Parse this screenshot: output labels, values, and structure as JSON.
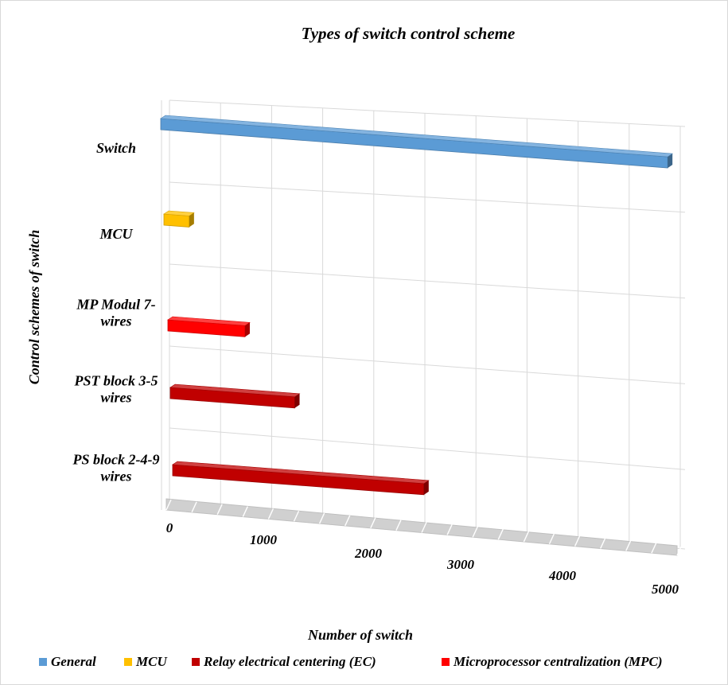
{
  "chart_data": {
    "type": "bar",
    "orientation": "horizontal",
    "style": "3d",
    "title": "Types of switch control scheme",
    "xlabel": "Number of switch",
    "ylabel": "Control schemes  of switch",
    "xlim": [
      0,
      5000
    ],
    "x_ticks": [
      "0",
      "1000",
      "2000",
      "3000",
      "4000",
      "5000"
    ],
    "grid": true,
    "legend_position": "bottom",
    "categories": [
      {
        "label_lines": [
          "Switch"
        ],
        "value": 4600,
        "series": "General"
      },
      {
        "label_lines": [
          "MCU"
        ],
        "value": 230,
        "series": "MCU"
      },
      {
        "label_lines": [
          "MP Modul 7-",
          "wires"
        ],
        "value": 700,
        "series": "Microprocessor centralization (MPC)"
      },
      {
        "label_lines": [
          "PST block 3-5",
          "wires"
        ],
        "value": 1130,
        "series": "Relay electrical centering (EC)"
      },
      {
        "label_lines": [
          "PS block 2-4-9",
          "wires"
        ],
        "value": 2280,
        "series": "Relay electrical centering (EC)"
      }
    ],
    "series": [
      {
        "name": "General",
        "color": "#5b9bd5"
      },
      {
        "name": "MCU",
        "color": "#ffc000"
      },
      {
        "name": "Relay electrical centering (EC)",
        "color": "#c00000"
      },
      {
        "name": "Microprocessor centralization (MPC)",
        "color": "#ff0000"
      }
    ]
  }
}
